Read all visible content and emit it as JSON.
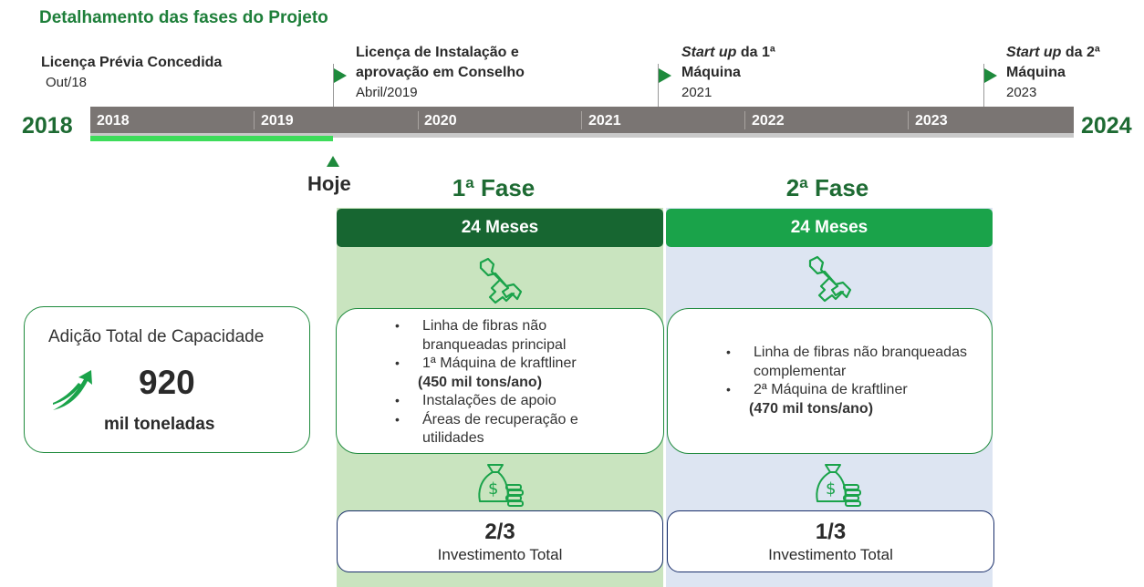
{
  "title": "Detalhamento das fases do Projeto",
  "timeline": {
    "start_year": "2018",
    "end_year": "2024",
    "years": [
      "2018",
      "2019",
      "2020",
      "2021",
      "2022",
      "2023"
    ],
    "progress": 0.247,
    "today_label": "Hoje"
  },
  "milestones": [
    {
      "title": "Licença Prévia Concedida",
      "date": "Out/18"
    },
    {
      "title_line1": "Licença de Instalação e",
      "title_line2": "aprovação em Conselho",
      "date": "Abril/2019"
    },
    {
      "title_italic": "Start up",
      "title_rest": " da 1ª",
      "title_line2": "Máquina",
      "date": "2021"
    },
    {
      "title_italic": "Start up",
      "title_rest": " da 2ª",
      "title_line2": "Máquina",
      "date": "2023"
    }
  ],
  "phases": [
    {
      "title": "1ª Fase",
      "duration": "24 Meses",
      "scope": [
        {
          "text": "Linha de fibras não",
          "bullet": true
        },
        {
          "text": "branqueadas principal",
          "bullet": false
        },
        {
          "text": "1ª Máquina de kraftliner",
          "bullet": true
        },
        {
          "text": "(450 mil tons/ano)",
          "bullet": false,
          "bold": true
        },
        {
          "text": "Instalações de apoio",
          "bullet": true
        },
        {
          "text": "Áreas de recuperação e",
          "bullet": true
        },
        {
          "text": "utilidades",
          "bullet": false
        }
      ],
      "investment_fraction": "2/3",
      "investment_label": "Investimento Total"
    },
    {
      "title": "2ª Fase",
      "duration": "24 Meses",
      "scope": [
        {
          "text": "Linha de fibras não branqueadas",
          "bullet": true
        },
        {
          "text": "complementar",
          "bullet": false
        },
        {
          "text": "2ª Máquina de kraftliner",
          "bullet": true
        },
        {
          "text": "(470 mil tons/ano)",
          "bullet": false,
          "bold": true
        }
      ],
      "investment_fraction": "1/3",
      "investment_label": "Investimento Total"
    }
  ],
  "capacity": {
    "title": "Adição Total de  Capacidade",
    "value": "920",
    "unit": "mil toneladas"
  },
  "icons": {
    "phase_tools": "wrench-hand-icon",
    "phase_money": "money-bag-coins-icon",
    "capacity": "growth-arrow-icon"
  },
  "colors": {
    "dark_green": "#176631",
    "bright_green": "#1aa34a",
    "progress_green": "#3ddc5a",
    "phase1_bg": "#c9e4bf",
    "phase2_bg": "#dde5f2",
    "timeline_gray": "#7a7573",
    "navy": "#1a2f6b"
  }
}
